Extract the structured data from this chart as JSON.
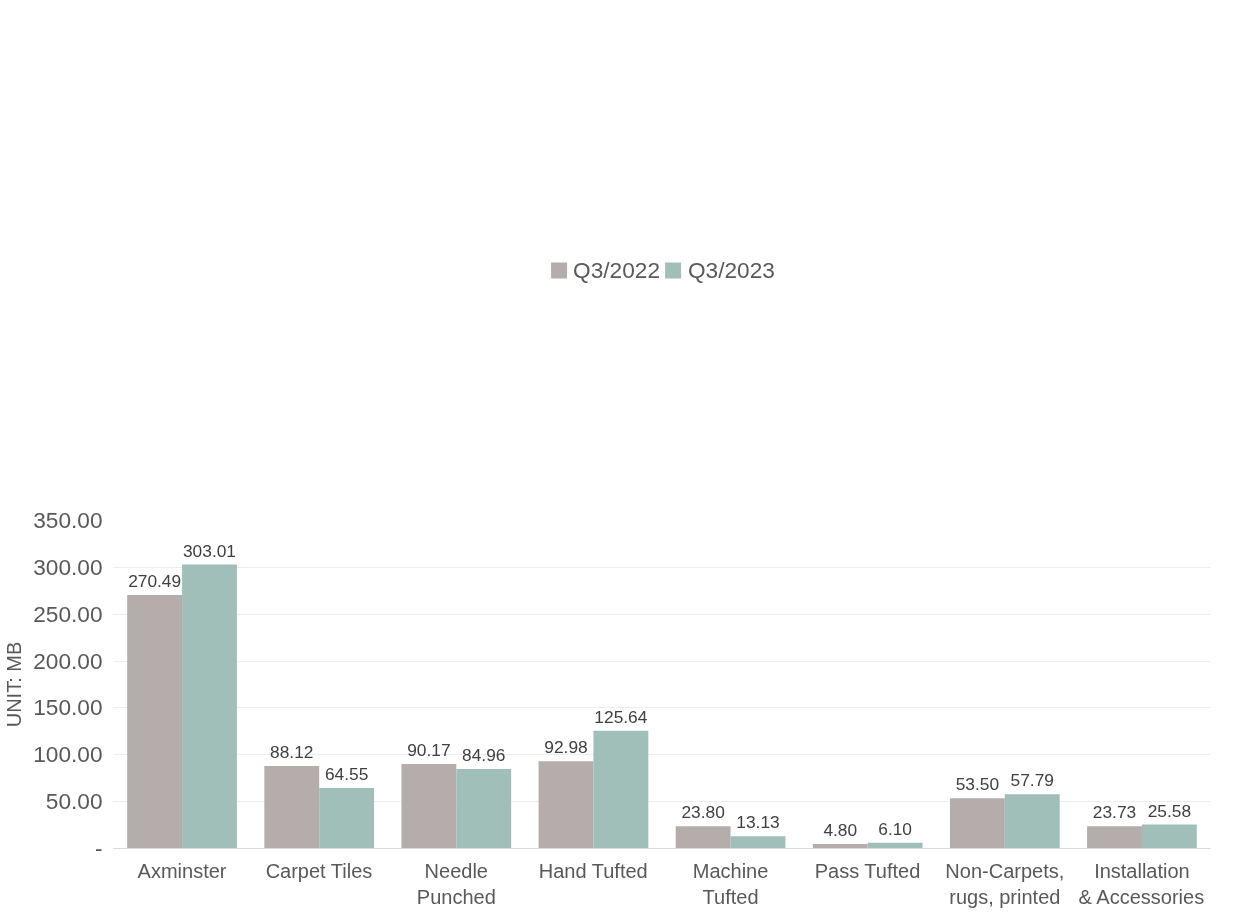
{
  "chart_data": {
    "type": "bar",
    "ylabel": "UNIT: MB",
    "categories": [
      "Axminster",
      "Carpet Tiles",
      "Needle Punched",
      "Hand Tufted",
      "Machine Tufted",
      "Pass Tufted",
      "Non-Carpets, rugs, printed",
      "Installation & Accessories"
    ],
    "series": [
      {
        "name": "Q3/2022",
        "color": "#b5adac",
        "values": [
          270.49,
          88.12,
          90.17,
          92.98,
          23.8,
          4.8,
          53.5,
          23.73
        ],
        "value_labels": [
          "270.49",
          "88.12",
          "90.17",
          "92.98",
          "23.80",
          "4.80",
          "53.50",
          "23.73"
        ]
      },
      {
        "name": "Q3/2023",
        "color": "#a0bfb8",
        "values": [
          303.01,
          64.55,
          84.96,
          125.64,
          13.13,
          6.1,
          57.79,
          25.58
        ],
        "value_labels": [
          "303.01",
          "64.55",
          "84.96",
          "125.64",
          "13.13",
          "6.10",
          "57.79",
          "25.58"
        ]
      }
    ],
    "ylim": [
      0,
      350
    ],
    "yticks": [
      {
        "value": 0,
        "label": "-"
      },
      {
        "value": 50,
        "label": "50.00"
      },
      {
        "value": 100,
        "label": "100.00"
      },
      {
        "value": 150,
        "label": "150.00"
      },
      {
        "value": 200,
        "label": "200.00"
      },
      {
        "value": 250,
        "label": "250.00"
      },
      {
        "value": 300,
        "label": "300.00"
      },
      {
        "value": 350,
        "label": "350.00"
      }
    ],
    "grid": "y",
    "legend": "top"
  }
}
